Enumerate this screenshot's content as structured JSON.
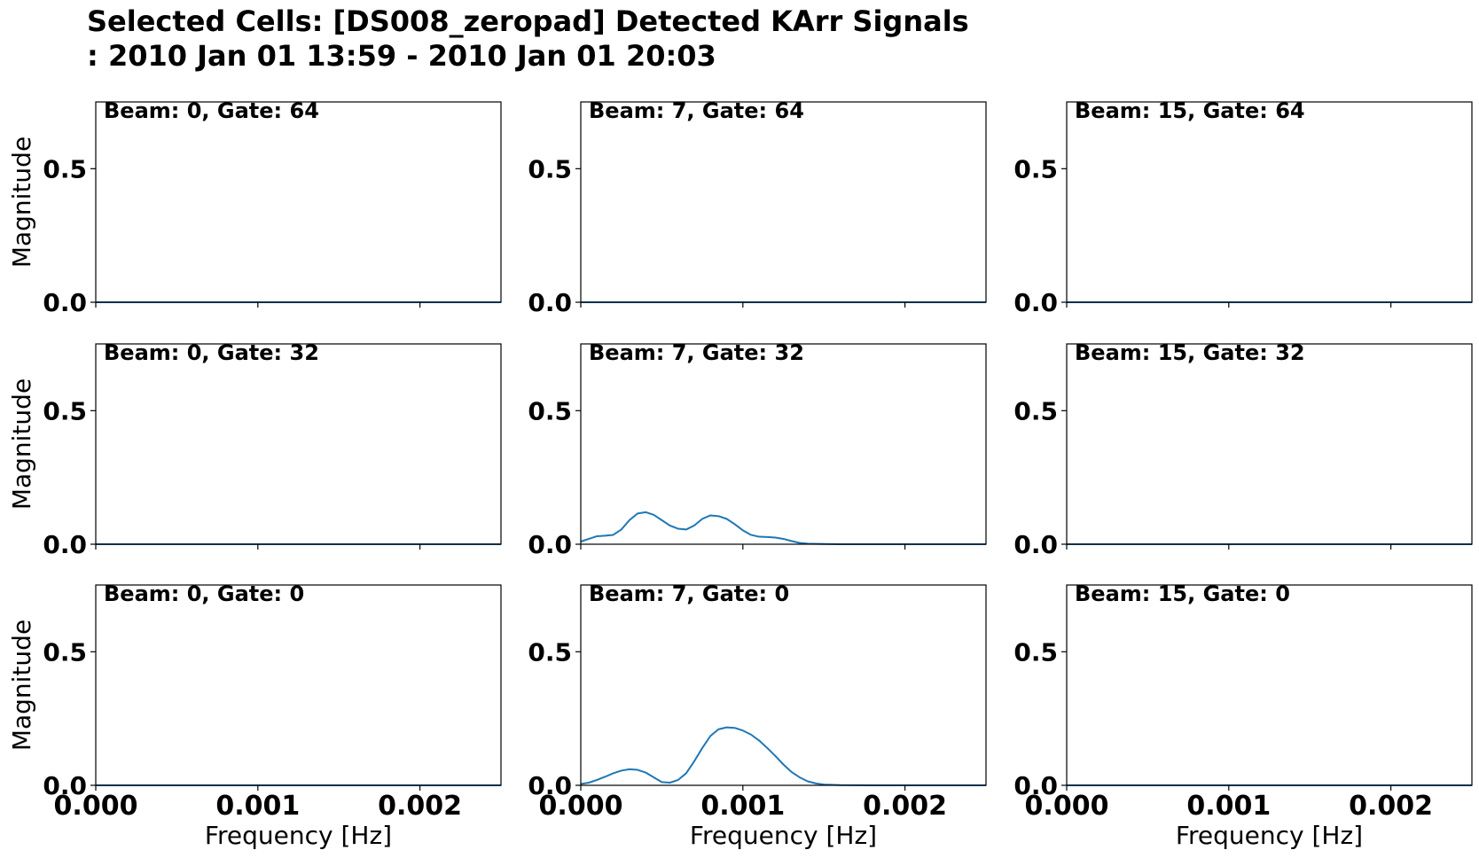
{
  "figure": {
    "title_line1": "Selected Cells: [DS008_zeropad] Detected KArr Signals",
    "title_line2": ": 2010 Jan 01 13:59 - 2010 Jan 01 20:03",
    "line_color": "#1f77b4"
  },
  "chart_data": {
    "type": "line",
    "layout": "3x3 grid of subplots",
    "xlabel": "Frequency [Hz]",
    "ylabel": "Magnitude",
    "xlim": [
      0,
      0.0025
    ],
    "ylim": [
      0,
      0.75
    ],
    "xticks": [
      0,
      0.001,
      0.002
    ],
    "xtick_labels": [
      "0.000",
      "0.001",
      "0.002"
    ],
    "yticks": [
      0,
      0.5
    ],
    "ytick_labels": [
      "0.0",
      "0.5"
    ],
    "grid": false,
    "legend": "none",
    "panels": [
      {
        "label": "Beam: 0, Gate: 64",
        "x": [
          0,
          0.0025
        ],
        "y": [
          0,
          0
        ]
      },
      {
        "label": "Beam: 7, Gate: 64",
        "x": [
          0,
          0.0025
        ],
        "y": [
          0,
          0
        ]
      },
      {
        "label": "Beam: 15, Gate: 64",
        "x": [
          0,
          0.0025
        ],
        "y": [
          0,
          0
        ]
      },
      {
        "label": "Beam: 0, Gate: 32",
        "x": [
          0,
          0.0025
        ],
        "y": [
          0,
          0
        ]
      },
      {
        "label": "Beam: 7, Gate: 32",
        "x": [
          0,
          5e-05,
          0.0001,
          0.00015,
          0.0002,
          0.00025,
          0.0003,
          0.00035,
          0.0004,
          0.00045,
          0.0005,
          0.00055,
          0.0006,
          0.00065,
          0.0007,
          0.00075,
          0.0008,
          0.00085,
          0.0009,
          0.00095,
          0.001,
          0.00105,
          0.0011,
          0.00115,
          0.0012,
          0.00125,
          0.0013,
          0.00135,
          0.0014,
          0.0015,
          0.0016,
          0.0018,
          0.002,
          0.0025
        ],
        "y": [
          0.01,
          0.02,
          0.03,
          0.032,
          0.035,
          0.055,
          0.09,
          0.115,
          0.12,
          0.11,
          0.09,
          0.07,
          0.058,
          0.055,
          0.07,
          0.095,
          0.108,
          0.105,
          0.095,
          0.075,
          0.052,
          0.035,
          0.028,
          0.027,
          0.025,
          0.02,
          0.012,
          0.005,
          0.002,
          0.001,
          0,
          0,
          0,
          0
        ]
      },
      {
        "label": "Beam: 15, Gate: 32",
        "x": [
          0,
          0.0025
        ],
        "y": [
          0,
          0
        ]
      },
      {
        "label": "Beam: 0, Gate: 0",
        "x": [
          0,
          0.0025
        ],
        "y": [
          0,
          0
        ]
      },
      {
        "label": "Beam: 7, Gate: 0",
        "x": [
          0,
          5e-05,
          0.0001,
          0.00015,
          0.0002,
          0.00025,
          0.0003,
          0.00035,
          0.0004,
          0.00045,
          0.0005,
          0.00055,
          0.0006,
          0.00065,
          0.0007,
          0.00075,
          0.0008,
          0.00085,
          0.0009,
          0.00095,
          0.001,
          0.00105,
          0.0011,
          0.00115,
          0.0012,
          0.00125,
          0.0013,
          0.00135,
          0.0014,
          0.00145,
          0.0015,
          0.0016,
          0.0018,
          0.002,
          0.0025
        ],
        "y": [
          0.005,
          0.01,
          0.02,
          0.032,
          0.045,
          0.055,
          0.06,
          0.058,
          0.048,
          0.03,
          0.012,
          0.01,
          0.02,
          0.045,
          0.09,
          0.14,
          0.185,
          0.21,
          0.217,
          0.215,
          0.205,
          0.19,
          0.168,
          0.14,
          0.11,
          0.078,
          0.05,
          0.03,
          0.015,
          0.007,
          0.003,
          0.001,
          0,
          0,
          0
        ]
      },
      {
        "label": "Beam: 15, Gate: 0",
        "x": [
          0,
          0.0025
        ],
        "y": [
          0,
          0
        ]
      }
    ]
  }
}
